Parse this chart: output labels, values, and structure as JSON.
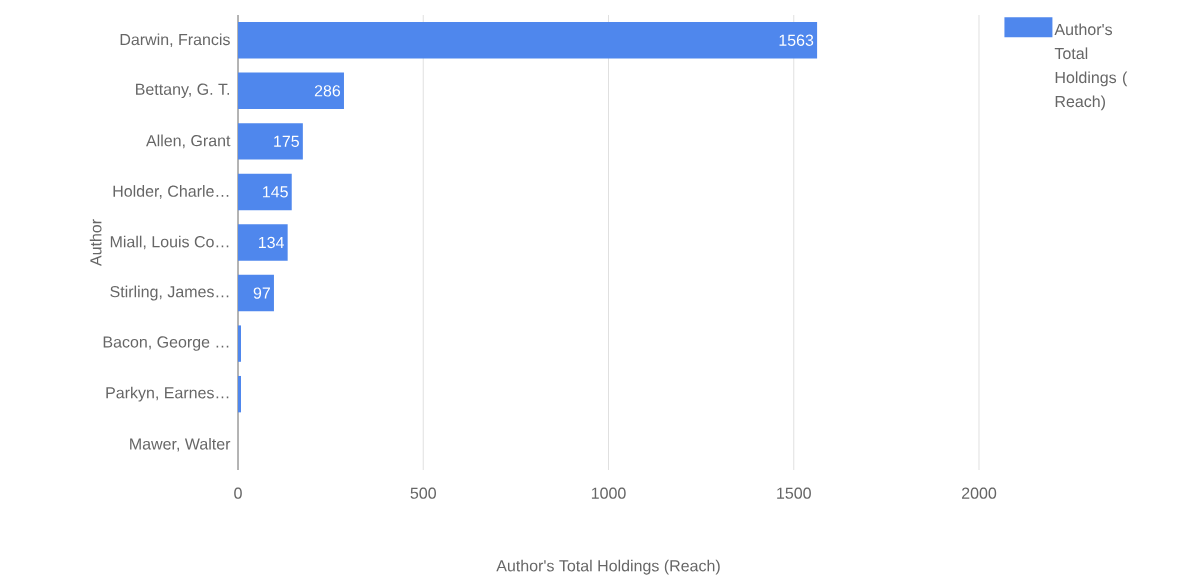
{
  "chart_data": {
    "type": "bar",
    "orientation": "horizontal",
    "categories": [
      "Darwin, Francis",
      "Bettany, G. T.",
      "Allen, Grant",
      "Holder, Charle…",
      "Miall, Louis Co…",
      "Stirling, James…",
      "Bacon, George …",
      "Parkyn, Earnes…",
      "Mawer, Walter"
    ],
    "series": [
      {
        "name": "Author's Total Holdings ( Reach)",
        "color": "#4f87ed",
        "values": [
          1563,
          286,
          175,
          145,
          134,
          97,
          8,
          8,
          0
        ],
        "value_labels": [
          "1563",
          "286",
          "175",
          "145",
          "134",
          "97",
          null,
          null,
          null
        ]
      }
    ],
    "xlim": [
      0,
      2000
    ],
    "xticks": [
      0,
      500,
      1000,
      1500,
      2000
    ],
    "xlabel": "Author's Total Holdings (Reach)",
    "ylabel": "Author",
    "grid": "x",
    "legend": "top right"
  }
}
